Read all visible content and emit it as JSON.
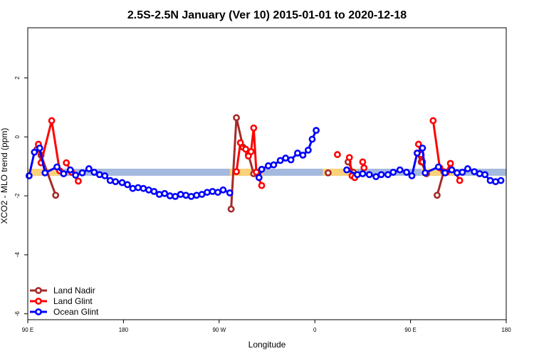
{
  "chart_data": {
    "type": "line",
    "title": "2.5S-2.5N January (Ver 10)   2015-01-01 to 2020-12-18",
    "xlabel": "Longitude",
    "ylabel": "XCO2 - MLO trend (ppm)",
    "xlim": [
      0,
      360
    ],
    "ylim": [
      -6.2,
      3.7
    ],
    "x_ticks": [
      {
        "value": 0,
        "label": "90 E"
      },
      {
        "value": 72,
        "label": "180"
      },
      {
        "value": 144,
        "label": "90 W"
      },
      {
        "value": 216,
        "label": "0"
      },
      {
        "value": 288,
        "label": "90 E"
      },
      {
        "value": 360,
        "label": "180"
      }
    ],
    "y_ticks": [
      {
        "value": -6,
        "label": "-6"
      },
      {
        "value": -4,
        "label": "-4"
      },
      {
        "value": -2,
        "label": "-2"
      },
      {
        "value": 0,
        "label": "0"
      },
      {
        "value": 2,
        "label": "2"
      }
    ],
    "bands": [
      {
        "x": [
          0,
          360
        ],
        "y": [
          -1.32,
          -1.08
        ],
        "color": "#a4b9de"
      },
      {
        "x": [
          0,
          24
        ],
        "y": [
          -1.32,
          -1.08
        ],
        "color": "#fbd27a"
      },
      {
        "x": [
          152,
          177
        ],
        "y": [
          -1.32,
          -1.08
        ],
        "color": "#fbd27a"
      },
      {
        "x": [
          222,
          248
        ],
        "y": [
          -1.32,
          -1.08
        ],
        "color": "#fbd27a"
      },
      {
        "x": [
          296,
          321
        ],
        "y": [
          -1.32,
          -1.08
        ],
        "color": "#fbd27a"
      }
    ],
    "series": [
      {
        "name": "Land Nadir",
        "color": "#a52a2a",
        "segments": [
          [
            [
              7,
              -0.42
            ],
            [
              10,
              -0.62
            ],
            [
              21,
              -1.98
            ]
          ],
          [
            [
              153,
              -2.45
            ],
            [
              157,
              0.65
            ],
            [
              162,
              -0.35
            ],
            [
              166,
              -0.6
            ],
            [
              170,
              -1.25
            ]
          ],
          [
            [
              226,
              -1.22
            ]
          ],
          [
            [
              241,
              -0.85
            ],
            [
              245,
              -1.2
            ]
          ],
          [
            [
              293,
              -0.55
            ],
            [
              296,
              -0.85
            ],
            [
              300,
              -1.25
            ]
          ],
          [
            [
              308,
              -1.98
            ],
            [
              313,
              -1.18
            ]
          ]
        ]
      },
      {
        "name": "Land Glint",
        "color": "#ff0000",
        "segments": [
          [
            [
              8,
              -0.25
            ],
            [
              10,
              -0.88
            ],
            [
              18,
              0.55
            ],
            [
              24,
              -1.15
            ]
          ],
          [
            [
              29,
              -0.88
            ],
            [
              33,
              -1.2
            ],
            [
              38,
              -1.5
            ]
          ],
          [
            [
              157,
              -1.18
            ],
            [
              160,
              -0.2
            ],
            [
              164,
              -0.42
            ],
            [
              166,
              -0.65
            ],
            [
              168,
              -0.5
            ],
            [
              170,
              0.3
            ],
            [
              172,
              -1.2
            ],
            [
              176,
              -1.65
            ]
          ],
          [
            [
              233,
              -0.6
            ]
          ],
          [
            [
              242,
              -0.7
            ],
            [
              244,
              -1.32
            ],
            [
              246,
              -1.38
            ]
          ],
          [
            [
              252,
              -0.85
            ],
            [
              253,
              -1.05
            ]
          ],
          [
            [
              294,
              -0.25
            ],
            [
              296,
              -0.6
            ],
            [
              297,
              -0.85
            ]
          ],
          [
            [
              305,
              0.55
            ],
            [
              310,
              -1.05
            ],
            [
              315,
              -1.2
            ],
            [
              318,
              -0.9
            ],
            [
              325,
              -1.48
            ]
          ]
        ]
      },
      {
        "name": "Ocean Glint",
        "color": "#0000ff",
        "segments": [
          [
            [
              1,
              -1.32
            ],
            [
              5,
              -0.52
            ],
            [
              9,
              -0.38
            ],
            [
              13,
              -1.22
            ],
            [
              22,
              -1.02
            ],
            [
              27,
              -1.25
            ],
            [
              32,
              -1.12
            ],
            [
              36,
              -1.3
            ],
            [
              41,
              -1.22
            ],
            [
              46,
              -1.08
            ],
            [
              50,
              -1.2
            ],
            [
              54,
              -1.28
            ],
            [
              58,
              -1.32
            ],
            [
              62,
              -1.48
            ],
            [
              66,
              -1.52
            ],
            [
              71,
              -1.55
            ],
            [
              75,
              -1.62
            ],
            [
              79,
              -1.75
            ],
            [
              83,
              -1.72
            ],
            [
              87,
              -1.75
            ],
            [
              91,
              -1.8
            ],
            [
              95,
              -1.85
            ],
            [
              99,
              -1.95
            ],
            [
              103,
              -1.92
            ],
            [
              107,
              -2
            ],
            [
              111,
              -2.02
            ],
            [
              115,
              -1.95
            ],
            [
              119,
              -1.98
            ],
            [
              123,
              -2.02
            ],
            [
              127,
              -1.98
            ],
            [
              131,
              -1.95
            ],
            [
              135,
              -1.88
            ],
            [
              139,
              -1.85
            ],
            [
              143,
              -1.88
            ],
            [
              147,
              -1.8
            ],
            [
              152,
              -1.9
            ]
          ],
          [
            [
              174,
              -1.38
            ],
            [
              176,
              -1.1
            ],
            [
              181,
              -0.98
            ],
            [
              185,
              -0.95
            ],
            [
              190,
              -0.8
            ],
            [
              194,
              -0.72
            ],
            [
              198,
              -0.78
            ],
            [
              203,
              -0.55
            ],
            [
              207,
              -0.62
            ],
            [
              211,
              -0.45
            ],
            [
              214,
              -0.08
            ],
            [
              217,
              0.22
            ]
          ],
          [
            [
              240,
              -1.12
            ],
            [
              248,
              -1.28
            ],
            [
              252,
              -1.25
            ],
            [
              257,
              -1.28
            ],
            [
              262,
              -1.35
            ],
            [
              266,
              -1.28
            ],
            [
              271,
              -1.28
            ],
            [
              275,
              -1.2
            ],
            [
              280,
              -1.12
            ],
            [
              285,
              -1.2
            ],
            [
              289,
              -1.32
            ],
            [
              293,
              -0.55
            ],
            [
              297,
              -0.38
            ],
            [
              299,
              -1.22
            ],
            [
              309,
              -1.02
            ],
            [
              314,
              -1.22
            ],
            [
              319,
              -1.12
            ],
            [
              323,
              -1.22
            ],
            [
              327,
              -1.2
            ],
            [
              331,
              -1.08
            ],
            [
              336,
              -1.18
            ],
            [
              340,
              -1.25
            ],
            [
              344,
              -1.28
            ],
            [
              348,
              -1.48
            ],
            [
              352,
              -1.52
            ],
            [
              356,
              -1.48
            ]
          ]
        ]
      }
    ],
    "legend": {
      "placement": "bottom-left",
      "entries": [
        "Land Nadir",
        "Land Glint",
        "Ocean Glint"
      ]
    },
    "grid": false
  }
}
